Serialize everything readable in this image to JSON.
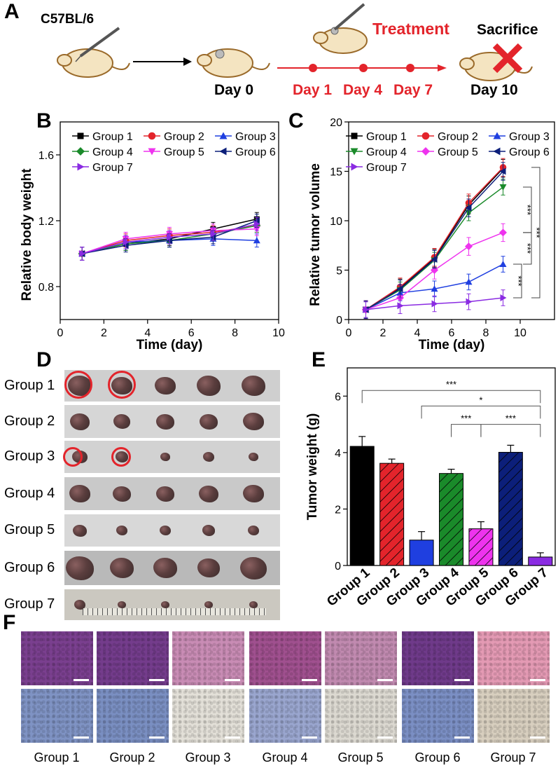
{
  "panels": [
    "A",
    "B",
    "C",
    "D",
    "E",
    "F"
  ],
  "schematic": {
    "strain": "C57BL/6",
    "day0": "Day 0",
    "treatment": "Treatment",
    "treat_days": [
      "Day 1",
      "Day 4",
      "Day 7"
    ],
    "sacrifice": "Sacrifice",
    "day10": "Day 10",
    "colors": {
      "treatment": "#e3242b",
      "line": "#e3242b"
    }
  },
  "groups": [
    "Group 1",
    "Group 2",
    "Group 3",
    "Group 4",
    "Group 5",
    "Group 6",
    "Group 7"
  ],
  "series_colors": [
    "#000000",
    "#e3242b",
    "#1f3fe0",
    "#1a8a2a",
    "#ee33ee",
    "#0c1f7a",
    "#8a2be2"
  ],
  "chart_data": [
    {
      "id": "B",
      "type": "line",
      "xlabel": "Time (day)",
      "ylabel": "Relative body weight",
      "xlim": [
        0,
        10
      ],
      "ylim": [
        0.6,
        1.8
      ],
      "xticks": [
        0,
        2,
        4,
        6,
        8,
        10
      ],
      "yticks": [
        0.8,
        1.2,
        1.6
      ],
      "ytick_labels": [
        "0.8",
        "1.2",
        "1.6"
      ],
      "x": [
        1,
        3,
        5,
        7,
        9
      ],
      "series": [
        {
          "name": "Group 1",
          "marker": "square",
          "values": [
            1.0,
            1.06,
            1.09,
            1.15,
            1.21
          ],
          "err": 0.04
        },
        {
          "name": "Group 2",
          "marker": "circle",
          "values": [
            1.0,
            1.08,
            1.11,
            1.13,
            1.17
          ],
          "err": 0.04
        },
        {
          "name": "Group 3",
          "marker": "triangle-up",
          "values": [
            1.0,
            1.07,
            1.08,
            1.09,
            1.08
          ],
          "err": 0.04
        },
        {
          "name": "Group 4",
          "marker": "diamond",
          "values": [
            1.0,
            1.06,
            1.08,
            1.12,
            1.17
          ],
          "err": 0.04
        },
        {
          "name": "Group 5",
          "marker": "triangle-down",
          "values": [
            1.0,
            1.09,
            1.12,
            1.14,
            1.15
          ],
          "err": 0.04
        },
        {
          "name": "Group 6",
          "marker": "triangle-left",
          "values": [
            1.0,
            1.05,
            1.08,
            1.1,
            1.2
          ],
          "err": 0.04
        },
        {
          "name": "Group 7",
          "marker": "triangle-right",
          "values": [
            1.0,
            1.07,
            1.1,
            1.12,
            1.18
          ],
          "err": 0.04
        }
      ]
    },
    {
      "id": "C",
      "type": "line",
      "xlabel": "Time (day)",
      "ylabel": "Relative tumor volume",
      "xlim": [
        0,
        12
      ],
      "ylim": [
        0,
        20
      ],
      "xticks": [
        0,
        2,
        4,
        6,
        8,
        10
      ],
      "yticks": [
        0,
        5,
        10,
        15,
        20
      ],
      "ytick_labels": [
        "0",
        "5",
        "10",
        "15",
        "20"
      ],
      "x": [
        1,
        3,
        5,
        7,
        9
      ],
      "series": [
        {
          "name": "Group 1",
          "marker": "square",
          "values": [
            1.0,
            3.2,
            6.2,
            11.6,
            15.3
          ],
          "err": 0.9
        },
        {
          "name": "Group 2",
          "marker": "circle",
          "values": [
            1.0,
            3.3,
            6.3,
            11.8,
            15.4
          ],
          "err": 0.9
        },
        {
          "name": "Group 3",
          "marker": "triangle-up",
          "values": [
            1.0,
            2.7,
            3.1,
            3.8,
            5.6
          ],
          "err": 0.8
        },
        {
          "name": "Group 4",
          "marker": "triangle-down",
          "values": [
            1.0,
            3.0,
            6.0,
            10.8,
            13.4
          ],
          "err": 0.8
        },
        {
          "name": "Group 5",
          "marker": "diamond",
          "values": [
            1.0,
            2.2,
            5.0,
            7.4,
            8.8
          ],
          "err": 0.9
        },
        {
          "name": "Group 6",
          "marker": "triangle-left",
          "values": [
            1.0,
            3.1,
            6.1,
            11.3,
            15.0
          ],
          "err": 0.9
        },
        {
          "name": "Group 7",
          "marker": "triangle-right",
          "values": [
            1.0,
            1.4,
            1.6,
            1.8,
            2.2
          ],
          "err": 0.8
        }
      ],
      "significance": [
        "***",
        "***",
        "***",
        "***"
      ]
    },
    {
      "id": "E",
      "type": "bar",
      "ylabel": "Tumor weight (g)",
      "ylim": [
        0,
        7
      ],
      "yticks": [
        0,
        2,
        4,
        6
      ],
      "ytick_labels": [
        "0",
        "2",
        "4",
        "6"
      ],
      "categories": [
        "Group 1",
        "Group 2",
        "Group 3",
        "Group 4",
        "Group 5",
        "Group 6",
        "Group 7"
      ],
      "values": [
        4.22,
        3.62,
        0.9,
        3.26,
        1.3,
        4.01,
        0.3
      ],
      "errors": [
        0.35,
        0.15,
        0.3,
        0.15,
        0.25,
        0.25,
        0.15
      ],
      "hatched": [
        false,
        true,
        false,
        true,
        true,
        true,
        false
      ],
      "significance": [
        "***",
        "*",
        "***",
        "***"
      ]
    }
  ],
  "tumor_photo": {
    "rows": [
      "Group 1",
      "Group 2",
      "Group 3",
      "Group 4",
      "Group 5",
      "Group 6",
      "Group 7"
    ]
  },
  "histology": {
    "labels": [
      "Group 1",
      "Group 2",
      "Group 3",
      "Group 4",
      "Group 5",
      "Group 6",
      "Group 7"
    ],
    "he_colors": [
      "#7a3f8f",
      "#743c8c",
      "#c98cb5",
      "#a0508f",
      "#c18ab0",
      "#6f3a8a",
      "#e49ab4"
    ],
    "ihc_colors": [
      "#7f93c4",
      "#7a8fc2",
      "#e3e0d8",
      "#9aa6cf",
      "#dcd9d1",
      "#7b8fc4",
      "#d8cfbf"
    ]
  }
}
